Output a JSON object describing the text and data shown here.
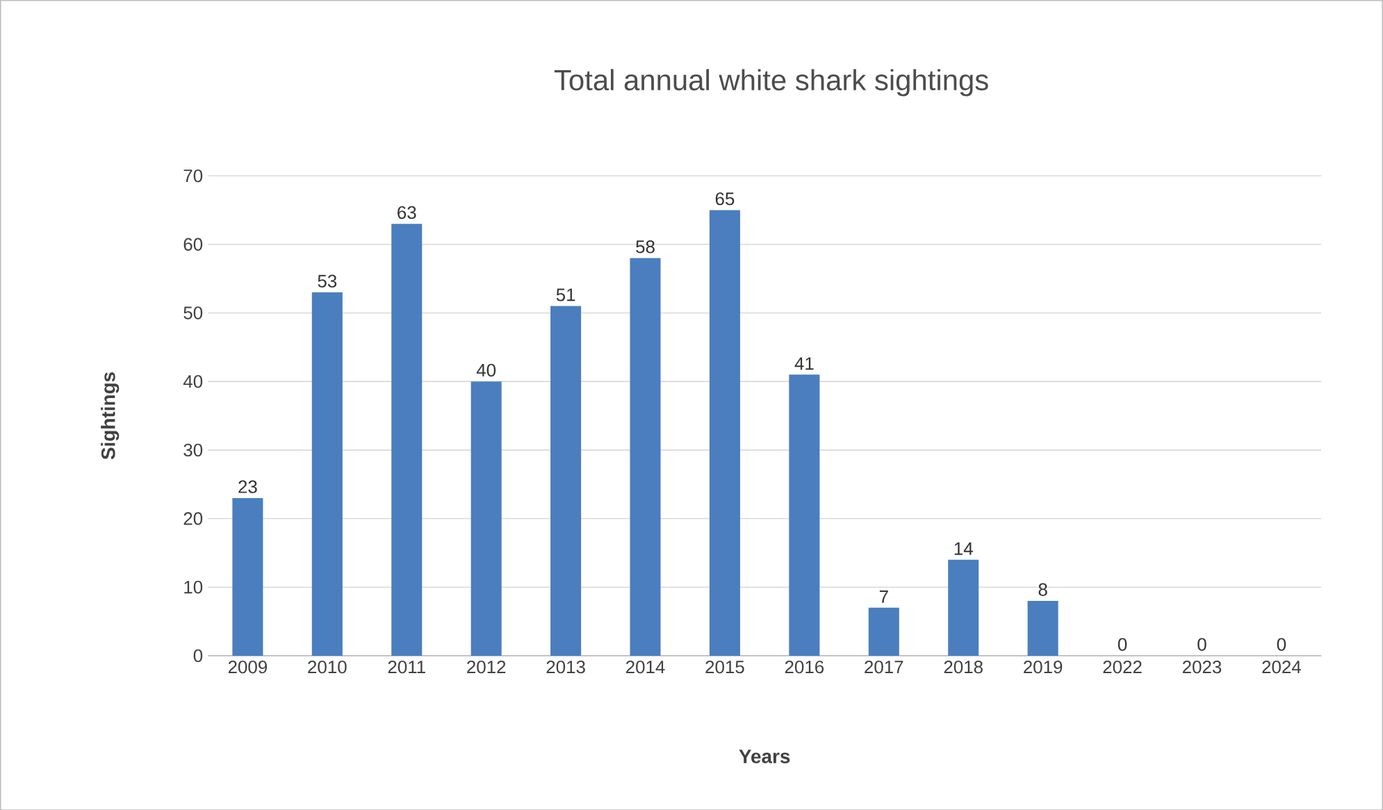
{
  "chart_data": {
    "type": "bar",
    "title": "Total annual white shark sightings",
    "xlabel": "Years",
    "ylabel": "Sightings",
    "categories": [
      "2009",
      "2010",
      "2011",
      "2012",
      "2013",
      "2014",
      "2015",
      "2016",
      "2017",
      "2018",
      "2019",
      "2022",
      "2023",
      "2024"
    ],
    "values": [
      23,
      53,
      63,
      40,
      51,
      58,
      65,
      41,
      7,
      14,
      8,
      0,
      0,
      0
    ],
    "color": "#4a7ebf",
    "ylim": [
      0,
      70
    ],
    "yticks": [
      0,
      10,
      20,
      30,
      40,
      50,
      60,
      70
    ],
    "grid": "y",
    "data_labels": true
  }
}
